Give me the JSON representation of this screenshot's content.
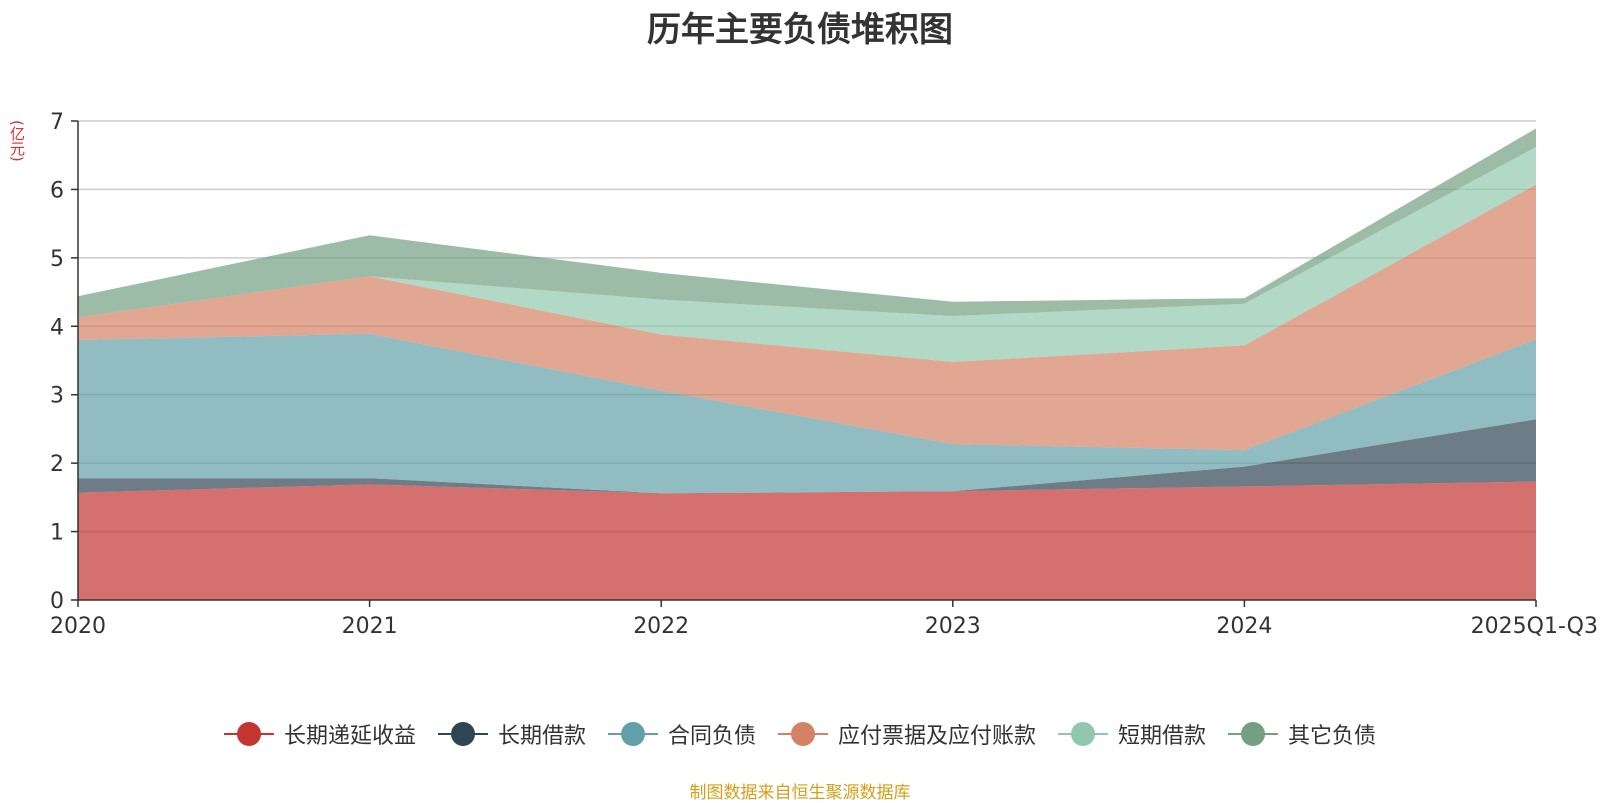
{
  "chart_data": {
    "type": "area",
    "stacked": true,
    "title": "历年主要负债堆积图",
    "ylabel": "(亿元)",
    "xlabel": "",
    "categories": [
      "2020",
      "2021",
      "2022",
      "2023",
      "2024",
      "2025Q1-Q3"
    ],
    "ylim": [
      0,
      7
    ],
    "yticks": [
      0,
      1,
      2,
      3,
      4,
      5,
      6,
      7
    ],
    "grid": true,
    "legend_position": "bottom",
    "series": [
      {
        "name": "长期递延收益",
        "color": "#c23531",
        "values": [
          1.57,
          1.69,
          1.56,
          1.59,
          1.66,
          1.73
        ]
      },
      {
        "name": "长期借款",
        "color": "#2f4554",
        "values": [
          0.21,
          0.09,
          0.0,
          0.0,
          0.29,
          0.91
        ]
      },
      {
        "name": "合同负债",
        "color": "#61a0a8",
        "values": [
          2.02,
          2.11,
          1.5,
          0.69,
          0.24,
          1.17
        ]
      },
      {
        "name": "应付票据及应付账款",
        "color": "#d48265",
        "values": [
          0.33,
          0.84,
          0.82,
          1.2,
          1.53,
          2.26
        ]
      },
      {
        "name": "短期借款",
        "color": "#91c7ae",
        "values": [
          0.0,
          0.0,
          0.51,
          0.67,
          0.61,
          0.55
        ]
      },
      {
        "name": "其它负债",
        "color": "#749f83",
        "values": [
          0.31,
          0.6,
          0.39,
          0.21,
          0.08,
          0.27
        ]
      }
    ],
    "source": "制图数据来自恒生聚源数据库"
  }
}
